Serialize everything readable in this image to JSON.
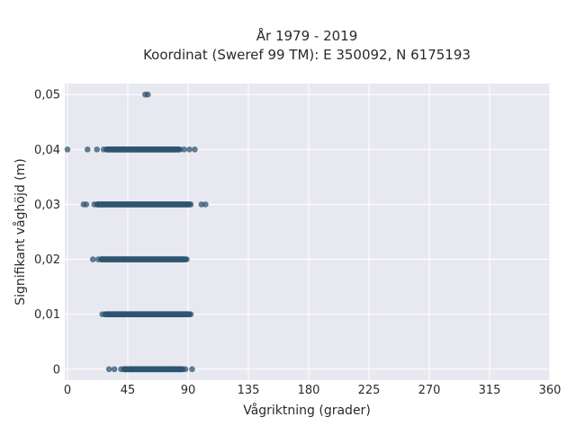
{
  "chart_data": {
    "type": "scatter",
    "title_line1": "År 1979 - 2019",
    "title_line2": "Koordinat (Sweref 99 TM): E 350092, N 6175193",
    "xlabel": "Vågriktning (grader)",
    "ylabel": "Signifikant våghöjd (m)",
    "xlim": [
      -2,
      360
    ],
    "ylim": [
      -0.002,
      0.052
    ],
    "xticks": [
      0,
      45,
      90,
      135,
      180,
      225,
      270,
      315,
      360
    ],
    "xtick_labels": [
      "0",
      "45",
      "90",
      "135",
      "180",
      "225",
      "270",
      "315",
      "360"
    ],
    "yticks": [
      0,
      0.01,
      0.02,
      0.03,
      0.04,
      0.05
    ],
    "ytick_labels": [
      "0",
      "0,01",
      "0,02",
      "0,03",
      "0,04",
      "0,05"
    ],
    "grid": true,
    "marker_color": "#2f5670",
    "plot_background": "#e8e8f0",
    "bands": [
      {
        "y": 0.0,
        "x_points": [
          31,
          35,
          93
        ],
        "x_dense": [
          40,
          88
        ]
      },
      {
        "y": 0.01,
        "x_points": [],
        "x_dense": [
          26,
          93
        ]
      },
      {
        "y": 0.02,
        "x_points": [
          19
        ],
        "x_dense": [
          23,
          90
        ]
      },
      {
        "y": 0.03,
        "x_points": [
          12,
          14,
          100,
          103
        ],
        "x_dense": [
          20,
          93
        ]
      },
      {
        "y": 0.04,
        "x_points": [
          0,
          15,
          22,
          87,
          91,
          95
        ],
        "x_dense": [
          27,
          85
        ]
      },
      {
        "y": 0.05,
        "x_points": [
          58,
          60
        ],
        "x_dense": []
      }
    ]
  }
}
